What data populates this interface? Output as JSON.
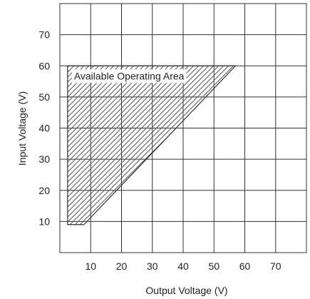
{
  "chart_data": {
    "type": "area",
    "xlabel": "Output Voltage (V)",
    "ylabel": "Input Voltage (V)",
    "xlim": [
      0,
      80
    ],
    "ylim": [
      0,
      80
    ],
    "x_ticks": [
      10,
      20,
      30,
      40,
      50,
      60,
      70
    ],
    "y_ticks": [
      10,
      20,
      30,
      40,
      50,
      60,
      70
    ],
    "grid": true,
    "region": {
      "label": "Available Operating Area",
      "fill": "hatched",
      "polygon": [
        {
          "x": 2.5,
          "y": 9
        },
        {
          "x": 7.8,
          "y": 9
        },
        {
          "x": 57,
          "y": 60
        },
        {
          "x": 2.5,
          "y": 60
        }
      ]
    }
  }
}
